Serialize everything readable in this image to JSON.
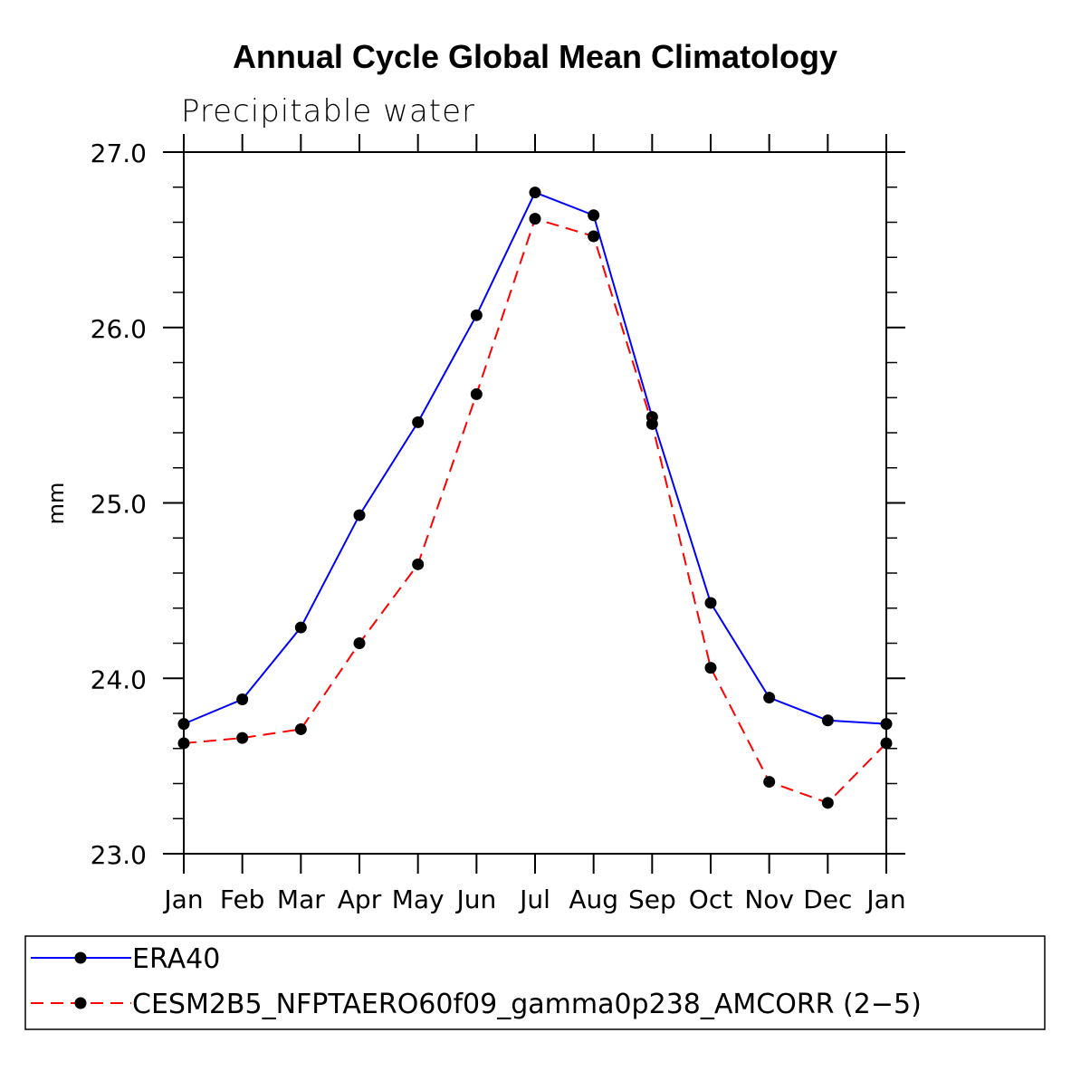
{
  "chart_data": {
    "type": "line",
    "title": "Annual Cycle Global Mean Climatology",
    "subtitle": "Precipitable water",
    "xlabel": "",
    "ylabel": "mm",
    "categories": [
      "Jan",
      "Feb",
      "Mar",
      "Apr",
      "May",
      "Jun",
      "Jul",
      "Aug",
      "Sep",
      "Oct",
      "Nov",
      "Dec",
      "Jan"
    ],
    "ylim": [
      23.0,
      27.0
    ],
    "y_ticks": [
      "23.0",
      "24.0",
      "25.0",
      "26.0",
      "27.0"
    ],
    "y_tick_values": [
      23.0,
      24.0,
      25.0,
      26.0,
      27.0
    ],
    "series": [
      {
        "name": "ERA40",
        "color": "#0000ff",
        "style": "solid",
        "marker": "filled-circle",
        "values": [
          23.74,
          23.88,
          24.29,
          24.93,
          25.46,
          26.07,
          26.77,
          26.64,
          25.49,
          24.43,
          23.89,
          23.76,
          23.74
        ]
      },
      {
        "name": "CESM2B5_NFPTAERO60f09_gamma0p238_AMCORR (2−5)",
        "color": "#ff0000",
        "style": "dashed",
        "marker": "filled-circle",
        "values": [
          23.63,
          23.66,
          23.71,
          24.2,
          24.65,
          25.62,
          26.62,
          26.52,
          25.45,
          24.06,
          23.41,
          23.29,
          23.63
        ]
      }
    ],
    "grid": false,
    "legend_position": "bottom"
  }
}
